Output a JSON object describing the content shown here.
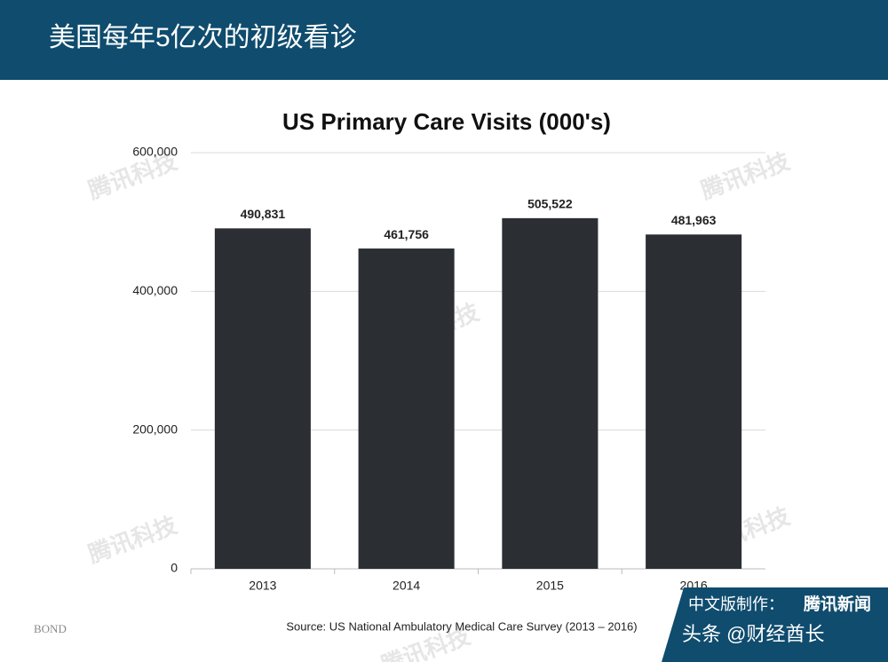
{
  "header": {
    "title": "美国每年5亿次的初级看诊"
  },
  "chart_data": {
    "type": "bar",
    "title": "US Primary Care Visits (000's)",
    "categories": [
      "2013",
      "2014",
      "2015",
      "2016"
    ],
    "values": [
      490831,
      461756,
      505522,
      481963
    ],
    "value_labels": [
      "490,831",
      "461,756",
      "505,522",
      "481,963"
    ],
    "color": "#2b2e33",
    "ylim": [
      0,
      600000
    ],
    "yticks": [
      0,
      {
        "value": 200000,
        "label": "200,000"
      },
      {
        "value": 400000,
        "label": "400,000"
      },
      {
        "value": 600000,
        "label": "600,000"
      }
    ],
    "grid": true,
    "source": "Source: US National Ambulatory Medical Care Survey (2013 – 2016)"
  },
  "footer": {
    "logo": "BOND",
    "badge": "中文版制作：",
    "badge_brand": "腾讯新闻",
    "credit": "头条 @财经酋长"
  },
  "watermark": "腾讯科技"
}
